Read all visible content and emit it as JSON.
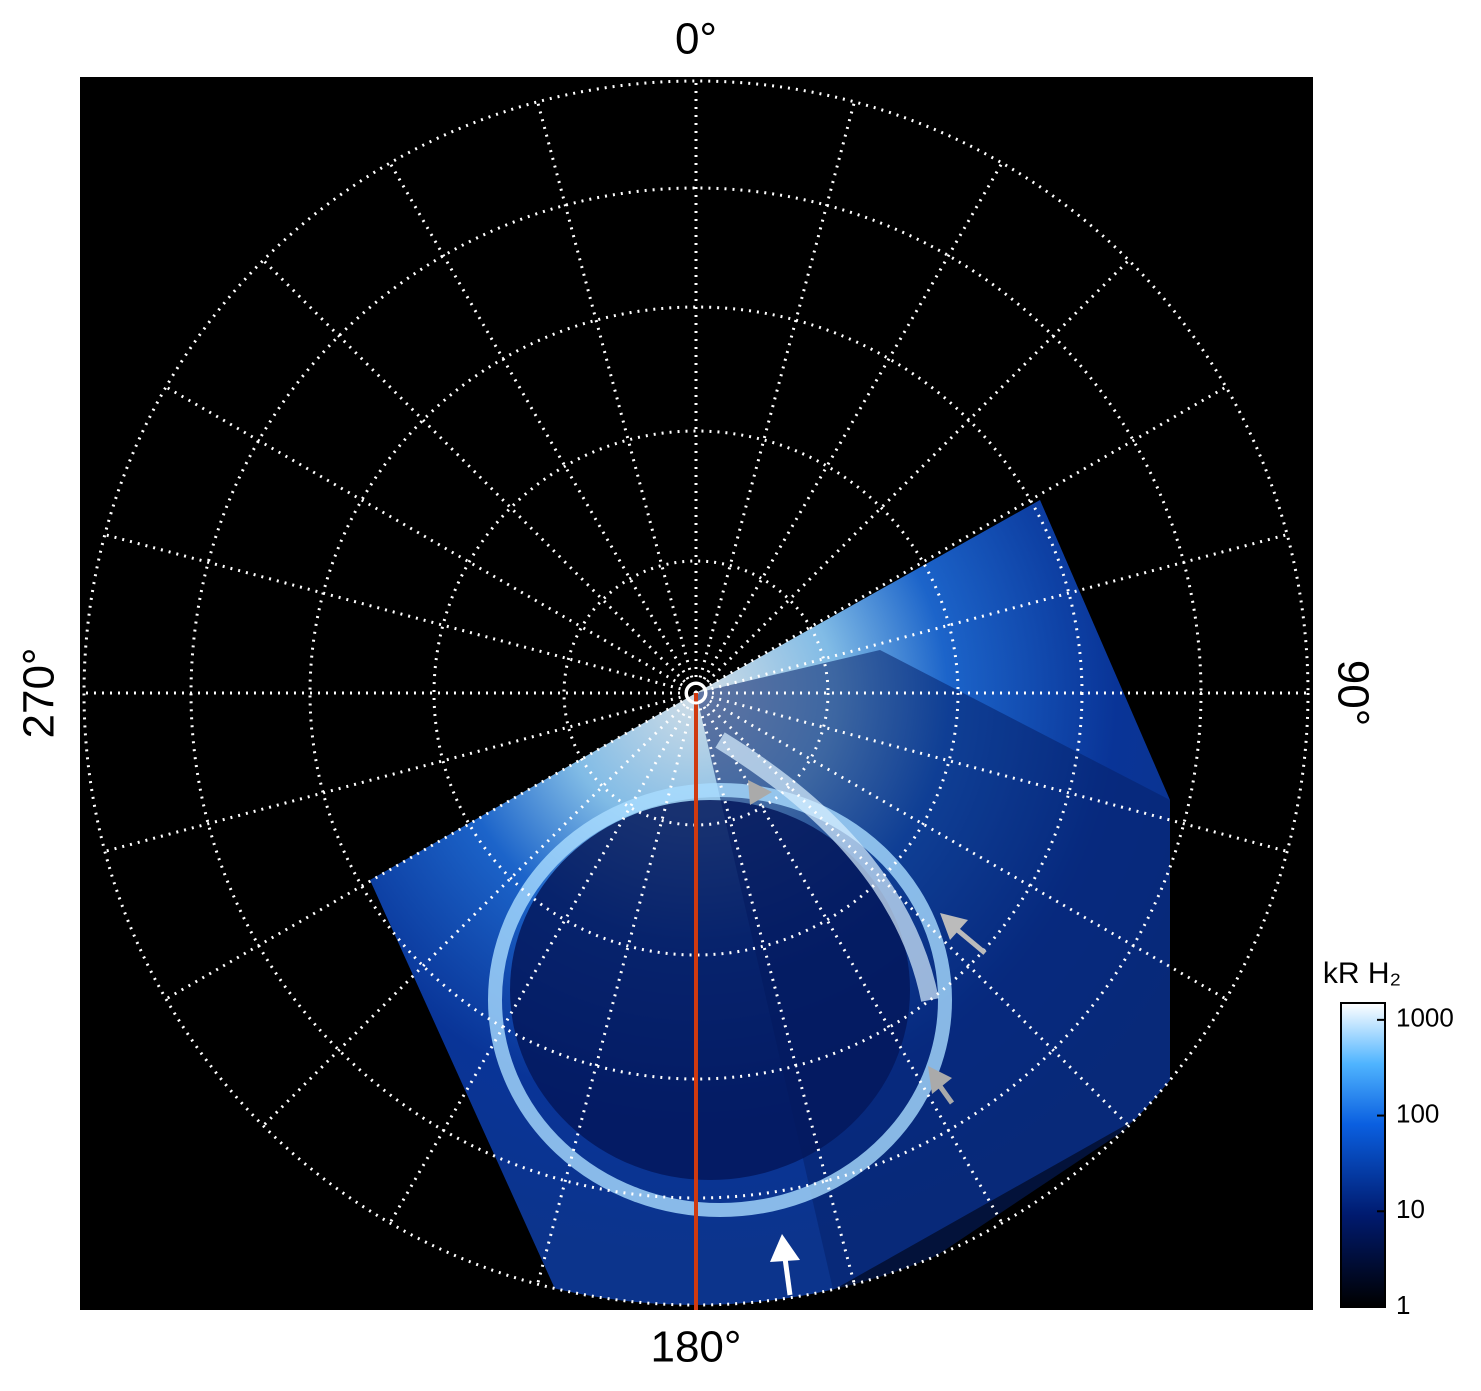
{
  "chart_data": {
    "type": "polar-image",
    "angle_labels": [
      "0°",
      "90°",
      "180°",
      "270°"
    ],
    "colorbar": {
      "label": "kR H₂",
      "lim": [
        1,
        1500
      ],
      "ticks": [
        1,
        10,
        100,
        1000
      ],
      "log": true
    }
  }
}
